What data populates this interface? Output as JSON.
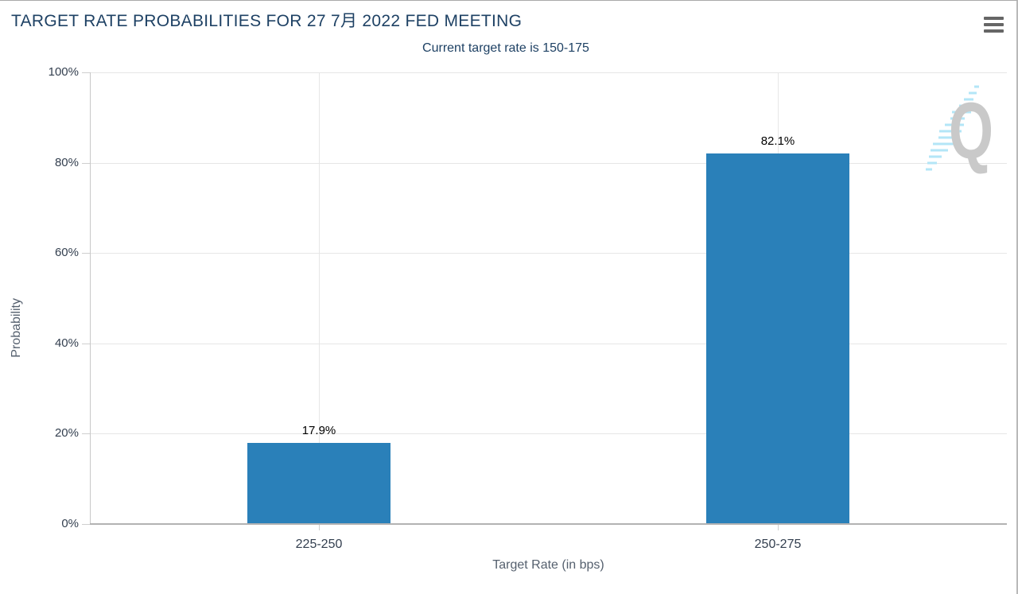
{
  "chart_data": {
    "type": "bar",
    "title": "TARGET RATE PROBABILITIES FOR 27 7月 2022 FED MEETING",
    "subtitle": "Current target rate is 150-175",
    "categories": [
      "225-250",
      "250-275"
    ],
    "values": [
      17.9,
      82.1
    ],
    "data_labels": [
      "17.9%",
      "82.1%"
    ],
    "xlabel": "Target Rate (in bps)",
    "ylabel": "Probability",
    "ylim": [
      0,
      100
    ],
    "yticks": [
      0,
      20,
      40,
      60,
      80,
      100
    ],
    "ytick_labels": [
      "0%",
      "20%",
      "40%",
      "60%",
      "80%",
      "100%"
    ],
    "grid": true,
    "legend": "none"
  },
  "menu": {
    "icon": "hamburger-icon"
  },
  "watermark": {
    "letter": "Q"
  },
  "colors": {
    "bar": "#2a80b9",
    "title": "#1e4164",
    "axis_label": "#333f4f",
    "axis_title": "#55606e",
    "data_label": "#000000",
    "gridline": "#e6e6e6",
    "axis_line": "#c7c7c7",
    "baseline": "#b3b3b3",
    "tick": "#cfcfcf",
    "menu": "#666666",
    "watermark_q": "#c9c9c9",
    "watermark_dash": "#b3e6f7",
    "border": "#a9a9a9"
  }
}
